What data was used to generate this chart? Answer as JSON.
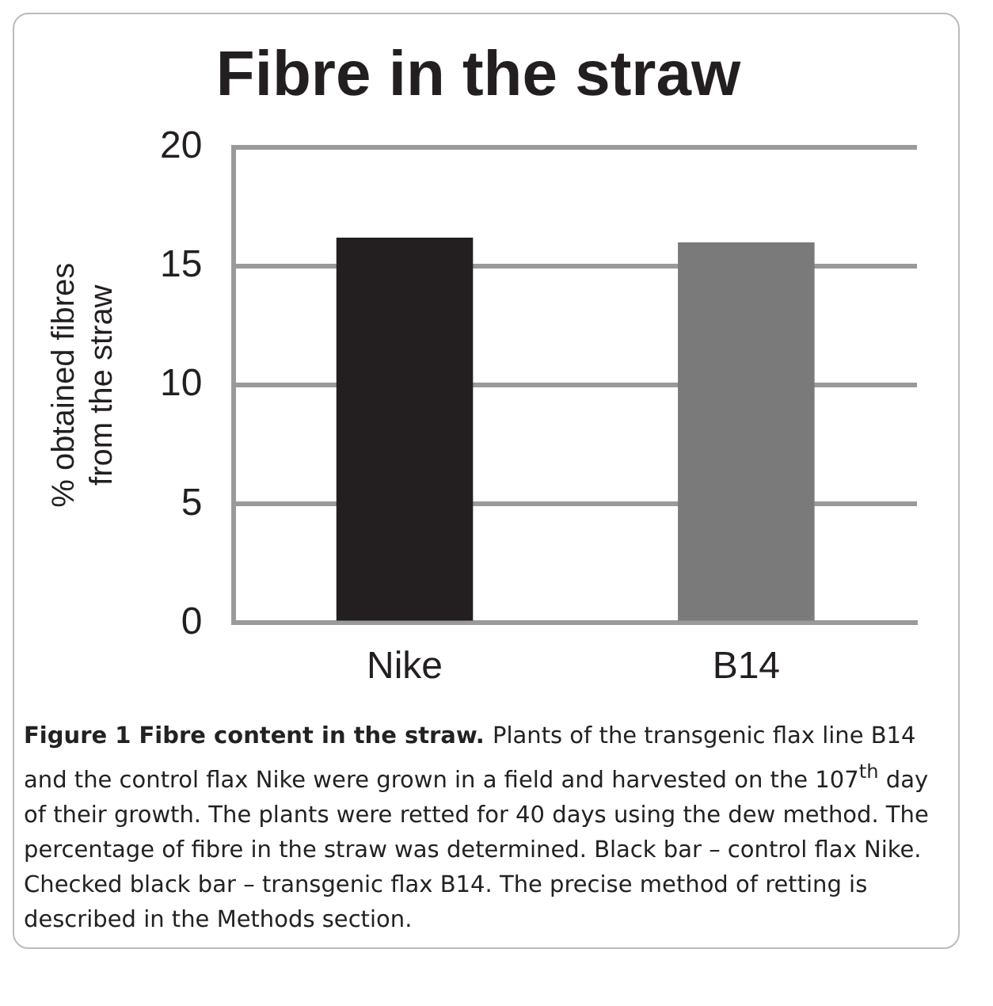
{
  "chart_data": {
    "type": "bar",
    "title": "Fibre in the straw",
    "ylabel": "% obtained fibres\nfrom the straw",
    "categories": [
      "Nike",
      "B14"
    ],
    "values": [
      16.2,
      16.0
    ],
    "colors": [
      "#231f20",
      "#7a7a7a"
    ],
    "ylim": [
      0,
      20
    ],
    "yticks": [
      0,
      5,
      10,
      15,
      20
    ],
    "grid": "y",
    "annotations": [
      "Figure 1 Fibre content in the straw.",
      "Plants of the transgenic flax line B14 and the control flax Nike were grown in a field and harvested on the 107$^{th}$ day of their growth. The plants were retted for 40 days using the dew method. The percentage of fibre in the straw was determined. Black bar – control flax Nike. Checked black bar – transgenic flax B14. The precise method of retting is described in the Methods section."
    ]
  }
}
